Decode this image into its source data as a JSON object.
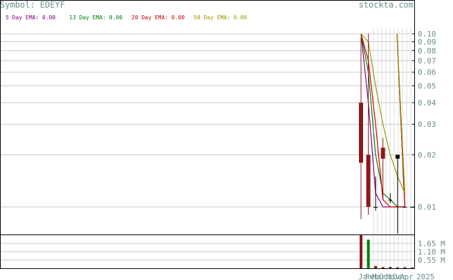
{
  "symbol_label": "Symbol: EDEYF",
  "watermark": "stockta.com",
  "legend": [
    {
      "label": "5 Day EMA: 0.00",
      "color": "#800080"
    },
    {
      "label": "13 Day EMA: 0.00",
      "color": "#008000"
    },
    {
      "label": "20 Day EMA: 0.00",
      "color": "#cc0000"
    },
    {
      "label": "50 Day EMA: 0.00",
      "color": "#999900"
    }
  ],
  "chart_data": {
    "type": "candlestick",
    "price_axis": {
      "scale": "log",
      "ticks": [
        0.1,
        0.09,
        0.08,
        0.07,
        0.06,
        0.05,
        0.04,
        0.03,
        0.02,
        0.01
      ],
      "tick_labels": [
        "0.10",
        "0.09",
        "0.08",
        "0.07",
        "0.06",
        "0.05",
        "0.04",
        "0.03",
        "0.02",
        "0.01"
      ]
    },
    "volume_axis": {
      "ticks": [
        1650000,
        1100000,
        550000
      ],
      "tick_labels": [
        "1.65 M",
        "1.10 M",
        "0.55 M"
      ],
      "max": 2200000
    },
    "x_axis_labels": [
      "Jan",
      "Feb",
      "Mar",
      "Oct",
      "Nov",
      "Dec",
      "Apr",
      "2025"
    ],
    "candles": [
      {
        "open": 0.04,
        "high": 0.095,
        "low": 0.0085,
        "close": 0.018,
        "color": "#8b1a1a"
      },
      {
        "open": 0.02,
        "high": 0.1,
        "low": 0.009,
        "close": 0.01,
        "color": "#8b1a1a"
      },
      {
        "open": 0.01,
        "high": 0.015,
        "low": 0.0095,
        "close": 0.01,
        "color": "#000000"
      },
      {
        "open": 0.022,
        "high": 0.025,
        "low": 0.011,
        "close": 0.019,
        "color": "#8b1a1a"
      },
      {
        "open": 0.011,
        "high": 0.012,
        "low": 0.0105,
        "close": 0.011,
        "color": "#000000"
      },
      {
        "open": 0.02,
        "high": 0.02,
        "low": 0.007,
        "close": 0.019,
        "color": "#000000"
      },
      {
        "open": 0.01,
        "high": 0.01,
        "low": 0.01,
        "close": 0.01,
        "color": "#000000"
      },
      {
        "open": 0.01,
        "high": 0.01,
        "low": 0.01,
        "close": 0.01,
        "color": "#000000"
      }
    ],
    "volumes": [
      2200000,
      1900000,
      150000,
      80000,
      90000,
      60000,
      70000,
      50000
    ],
    "ema_series": [
      {
        "name": "5 Day EMA",
        "color": "#800080",
        "values": [
          0.1,
          0.04,
          0.012,
          0.01,
          0.01,
          0.01,
          0.01,
          0.1
        ]
      },
      {
        "name": "13 Day EMA",
        "color": "#008000",
        "values": [
          0.1,
          0.06,
          0.02,
          0.012,
          0.011,
          0.01,
          0.01,
          0.1
        ]
      },
      {
        "name": "20 Day EMA",
        "color": "#cc0000",
        "values": [
          0.1,
          0.07,
          0.03,
          0.011,
          0.01,
          0.01,
          0.01,
          0.1
        ]
      },
      {
        "name": "50 Day EMA",
        "color": "#999900",
        "values": [
          0.1,
          0.09,
          0.05,
          0.03,
          0.02,
          0.015,
          0.012,
          0.1
        ]
      }
    ]
  }
}
